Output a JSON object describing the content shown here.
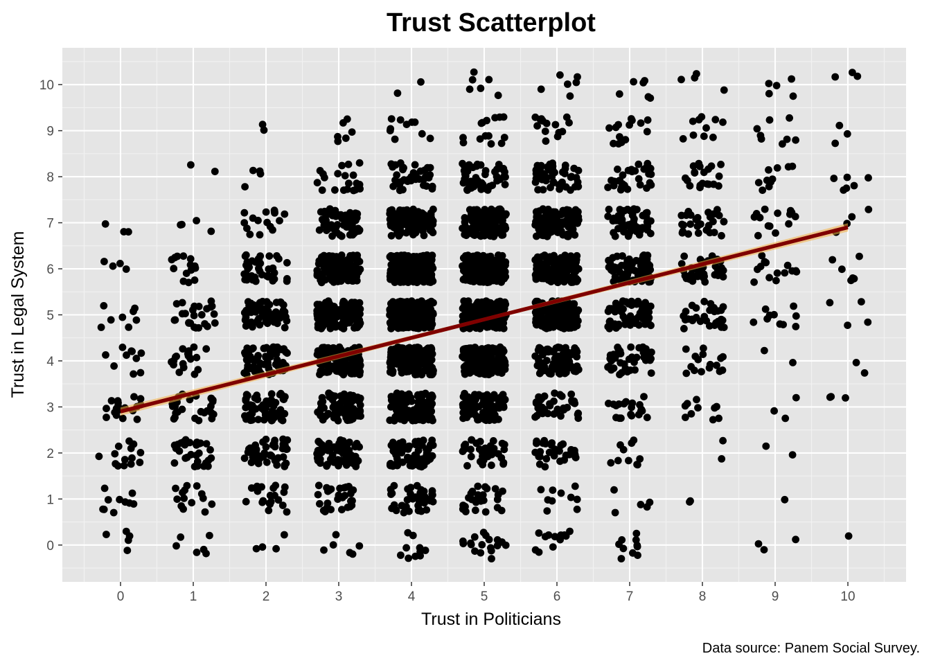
{
  "chart_data": {
    "type": "scatter",
    "title": "Trust Scatterplot",
    "xlabel": "Trust in Politicians",
    "ylabel": "Trust in Legal System",
    "caption": "Data source: Panem Social Survey.",
    "x_ticks": [
      0,
      1,
      2,
      3,
      4,
      5,
      6,
      7,
      8,
      9,
      10
    ],
    "y_ticks": [
      0,
      1,
      2,
      3,
      4,
      5,
      6,
      7,
      8,
      9,
      10
    ],
    "xlim": [
      -0.8,
      10.8
    ],
    "ylim": [
      -0.8,
      10.8
    ],
    "grid": true,
    "jitter": 0.3,
    "point_color": "#000000",
    "panel_color": "#e5e5e5",
    "fit_line": {
      "type": "linear",
      "color": "#7f0000",
      "ribbon_color": "#f5b041",
      "x_range": [
        0,
        10
      ],
      "intercept": 2.9,
      "slope": 0.4
    },
    "cell_counts": [
      [
        5,
        6,
        4,
        6,
        10,
        18,
        12,
        10,
        0,
        3,
        1
      ],
      [
        10,
        14,
        20,
        30,
        40,
        26,
        10,
        5,
        2,
        1,
        0
      ],
      [
        14,
        30,
        50,
        60,
        70,
        40,
        30,
        10,
        2,
        2,
        0
      ],
      [
        18,
        26,
        60,
        90,
        120,
        90,
        40,
        20,
        10,
        3,
        3
      ],
      [
        10,
        20,
        70,
        140,
        200,
        160,
        90,
        40,
        16,
        2,
        2
      ],
      [
        8,
        25,
        60,
        150,
        240,
        220,
        150,
        60,
        30,
        10,
        4
      ],
      [
        4,
        14,
        40,
        110,
        200,
        200,
        160,
        80,
        36,
        14,
        6
      ],
      [
        3,
        4,
        16,
        60,
        110,
        120,
        110,
        60,
        30,
        14,
        4
      ],
      [
        0,
        2,
        4,
        20,
        40,
        50,
        50,
        30,
        20,
        10,
        6
      ],
      [
        0,
        0,
        2,
        6,
        10,
        14,
        14,
        14,
        10,
        8,
        3
      ],
      [
        0,
        0,
        0,
        0,
        2,
        6,
        6,
        6,
        4,
        5,
        3
      ]
    ]
  }
}
